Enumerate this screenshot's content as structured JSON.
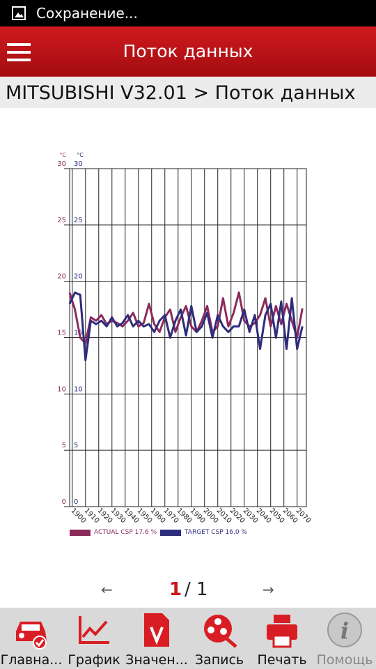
{
  "status_bar": {
    "text": "Сохранение..."
  },
  "app_bar": {
    "title": "Поток данных"
  },
  "breadcrumb": "MITSUBISHI V32.01 > Поток данных",
  "chart_data": {
    "type": "line",
    "y_unit": "°C",
    "y2_unit": "°C",
    "x": [
      1898,
      1902,
      1906,
      1910,
      1914,
      1918,
      1922,
      1926,
      1930,
      1934,
      1938,
      1942,
      1946,
      1950,
      1954,
      1958,
      1962,
      1966,
      1970,
      1974,
      1978,
      1982,
      1986,
      1990,
      1994,
      1998,
      2002,
      2006,
      2010,
      2014,
      2018,
      2022,
      2026,
      2030,
      2034,
      2038,
      2042,
      2046,
      2050,
      2054,
      2058,
      2062,
      2066,
      2070,
      2074
    ],
    "xlim": [
      1898,
      2077
    ],
    "xticks": [
      1900,
      1910,
      1920,
      1930,
      1940,
      1950,
      1960,
      1970,
      1980,
      1990,
      2000,
      2010,
      2020,
      2030,
      2040,
      2050,
      2060,
      2070
    ],
    "ylim": [
      0,
      30
    ],
    "yticks": [
      0,
      5,
      10,
      15,
      20,
      25,
      30
    ],
    "y2lim": [
      0,
      30
    ],
    "y2ticks": [
      0,
      5,
      10,
      15,
      20,
      25,
      30
    ],
    "grid": true,
    "series": [
      {
        "name": "ACTUAL CSP 17.6 %",
        "color": "#8c2a5c",
        "axis": "y",
        "values": [
          19,
          17.5,
          15,
          14.5,
          16.8,
          16.5,
          17,
          16.2,
          16.5,
          16.3,
          16,
          16.5,
          17.2,
          16,
          16.3,
          18,
          16.2,
          15.5,
          16.8,
          17.5,
          15.5,
          16.8,
          17.8,
          16,
          15.5,
          16.5,
          17.8,
          15.5,
          16,
          18.5,
          16,
          17.2,
          19,
          16.5,
          16,
          16.3,
          17,
          18.5,
          16,
          17.8,
          16.2,
          18,
          16.5,
          15,
          17.6
        ]
      },
      {
        "name": "TARGET CSP 16.0 %",
        "color": "#2e2c7c",
        "axis": "y2",
        "values": [
          18,
          19,
          18.8,
          13,
          16.5,
          16.2,
          16.5,
          16,
          16.8,
          16,
          16.3,
          17,
          16,
          16.5,
          16,
          16.2,
          15.5,
          16.5,
          17,
          15,
          16.5,
          17.5,
          15.2,
          17.8,
          15.5,
          16,
          17.2,
          15,
          17,
          16,
          15.5,
          16,
          16,
          17.5,
          15.5,
          17,
          14,
          17,
          18,
          15,
          18.2,
          14,
          18.5,
          14,
          16
        ]
      }
    ]
  },
  "pager": {
    "prev": "←",
    "current": "1",
    "separator": "/",
    "total": "1",
    "next": "→"
  },
  "nav": [
    "Главна...",
    "График",
    "Значен...",
    "Запись",
    "Печать",
    "Помощь"
  ]
}
